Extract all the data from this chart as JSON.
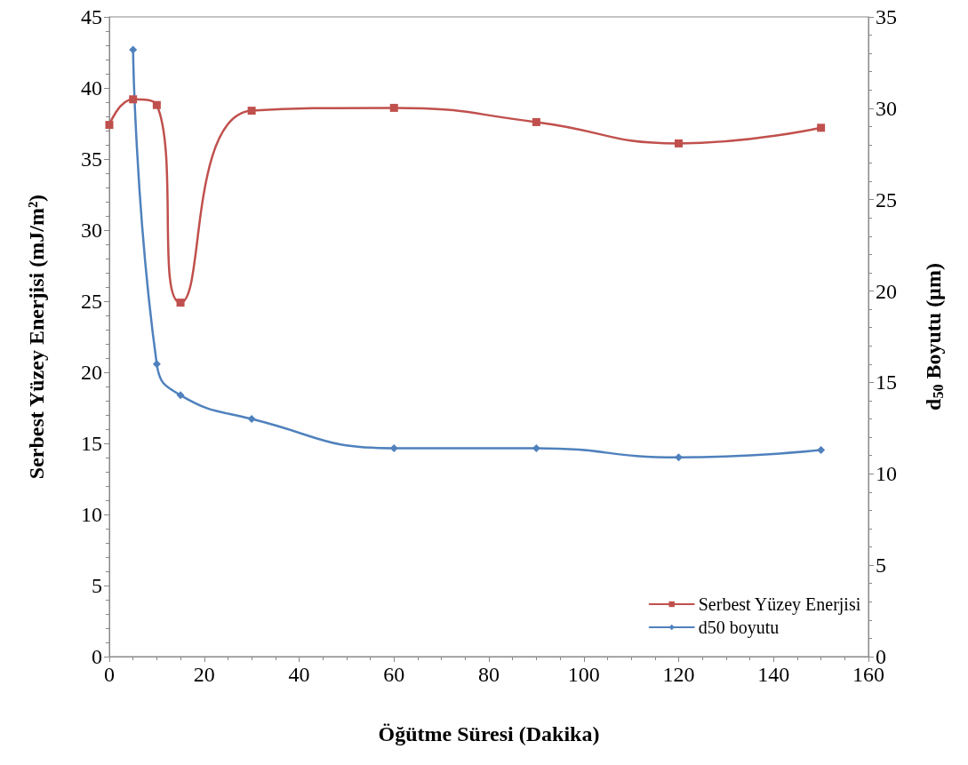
{
  "chart_data": {
    "type": "line",
    "xlabel": "Öğütme Süresi (Dakika)",
    "ylabel": "Serbest Yüzey Enerjisi (mJ/m²)",
    "y2label": "d$_{50}$ Boyutu (µm)",
    "xlim": [
      0,
      160
    ],
    "xticks": [
      0,
      20,
      40,
      60,
      80,
      100,
      120,
      140,
      160
    ],
    "ylim": [
      0,
      45
    ],
    "yticks": [
      0,
      5,
      10,
      15,
      20,
      25,
      30,
      35,
      40,
      45
    ],
    "y2lim": [
      0,
      35
    ],
    "y2ticks": [
      0,
      5,
      10,
      15,
      20,
      25,
      30,
      35
    ],
    "grid": false,
    "legend": "bottom right",
    "series": [
      {
        "name": "Serbest Yüzey Enerjisi",
        "color": "#c0504d",
        "marker": "square",
        "x": [
          0,
          5,
          10,
          15,
          30,
          60,
          90,
          120,
          150
        ],
        "values": [
          37.4,
          39.2,
          38.8,
          24.9,
          38.4,
          38.6,
          37.6,
          36.1,
          37.2
        ]
      },
      {
        "name": "d50 boyutu",
        "color": "#4f81bd",
        "marker": "diamond",
        "axis": "y2",
        "x": [
          5,
          10,
          15,
          30,
          60,
          90,
          120,
          150
        ],
        "values": [
          33.2,
          16.0,
          14.3,
          13.0,
          11.4,
          11.4,
          10.9,
          11.3
        ]
      }
    ]
  }
}
